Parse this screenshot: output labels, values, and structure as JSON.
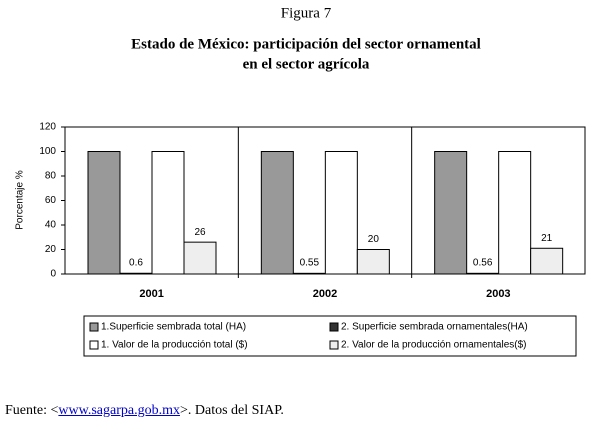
{
  "figure_label": "Figura 7",
  "chart_data": {
    "type": "bar",
    "title": [
      "Estado de México: participación del sector ornamental",
      "en el sector agrícola"
    ],
    "y_label": "Porcentaje %",
    "categories": [
      "2001",
      "2002",
      "2003"
    ],
    "series": [
      {
        "name": "1.Superficie sembrada total (HA)",
        "color": "#999999",
        "values": [
          100,
          100,
          100
        ],
        "data_labels": false
      },
      {
        "name": "2. Superficie sembrada ornamentales(HA)",
        "color": "#333333",
        "values": [
          0.6,
          0.55,
          0.56
        ],
        "data_labels": true
      },
      {
        "name": "1. Valor de la producción total ($)",
        "color": "#ffffff",
        "values": [
          100,
          100,
          100
        ],
        "data_labels": false
      },
      {
        "name": "2. Valor de la producción ornamentales($)",
        "color": "#eeeeee",
        "values": [
          26,
          20,
          21
        ],
        "data_labels": true
      }
    ],
    "ylim": [
      0,
      120
    ],
    "yticks": [
      0,
      20,
      40,
      60,
      80,
      100,
      120
    ],
    "grid": false
  },
  "source": {
    "prefix": "Fuente: <",
    "link": "www.sagarpa.gob.mx",
    "suffix": ">. Datos del SIAP."
  }
}
